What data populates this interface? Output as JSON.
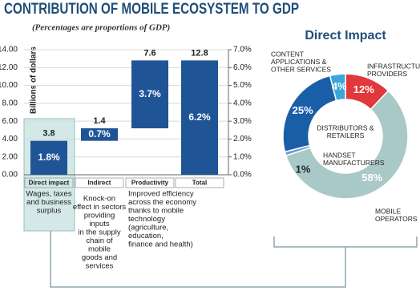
{
  "title": "CONTRIBUTION OF MOBILE ECOSYSTEM TO GDP",
  "subtitle": "(Percentages are proportions of GDP)",
  "chart_data": [
    {
      "type": "waterfall",
      "ylabel": "Billions of dollars",
      "categories": [
        "Direct impact",
        "Indirect",
        "Productivity",
        "Total"
      ],
      "measure": [
        "relative",
        "relative",
        "relative",
        "total"
      ],
      "values": [
        3.8,
        1.4,
        7.6,
        12.8
      ],
      "color": "#1f5596",
      "gdp_share": {
        "values": [
          1.8,
          0.7,
          3.7,
          6.2
        ],
        "value_labels": [
          "1.8%",
          "0.7%",
          "3.7%",
          "6.2%"
        ]
      },
      "descriptions": [
        [
          "Wages, taxes",
          "and business",
          "surplus"
        ],
        [
          "Knock-on",
          "effect in sectors",
          "providing",
          "inputs",
          "in the supply",
          "chain of",
          "mobile",
          "goods and",
          "services"
        ],
        [
          "Improved efficiency",
          "across the economy",
          "thanks to mobile",
          "technology",
          "(agriculture,",
          "education,",
          "finance and health)"
        ],
        []
      ],
      "ylim": [
        0,
        14
      ],
      "yticks": [
        {
          "value": 0,
          "label": "0.00"
        },
        {
          "value": 2,
          "label": "2.00"
        },
        {
          "value": 4,
          "label": "4.00"
        },
        {
          "value": 6,
          "label": "6.00"
        },
        {
          "value": 8,
          "label": "8.00"
        },
        {
          "value": 10,
          "label": "10.00"
        },
        {
          "value": 12,
          "label": "12.00"
        },
        {
          "value": 14,
          "label": "14.00"
        }
      ],
      "y2lim": [
        0,
        7
      ],
      "y2ticks": [
        {
          "value": 0,
          "label": "0.0%"
        },
        {
          "value": 1,
          "label": "1.0%"
        },
        {
          "value": 2,
          "label": "2.0%"
        },
        {
          "value": 3,
          "label": "3.0%"
        },
        {
          "value": 4,
          "label": "4.0%"
        },
        {
          "value": 5,
          "label": "5.0%"
        },
        {
          "value": 6,
          "label": "6.0%"
        },
        {
          "value": 7,
          "label": "7.0%"
        }
      ],
      "grid": true
    },
    {
      "type": "donut",
      "title": "Direct Impact",
      "slices": [
        {
          "name": [
            "INFRASTRUCTURE",
            "PROVIDERS"
          ],
          "value": 12,
          "value_label": "12%",
          "color": "#e0383b"
        },
        {
          "name": [
            "MOBILE",
            "OPERATORS"
          ],
          "value": 58,
          "value_label": "58%",
          "color": "#a9c9c8"
        },
        {
          "name": [
            "HANDSET",
            "MANUFACTURERS"
          ],
          "value": 1,
          "value_label": "1%",
          "color": "#6e9dcf"
        },
        {
          "name": [
            "DISTRIBUTORS &",
            "RETAILERS"
          ],
          "value": 25,
          "value_label": "25%",
          "color": "#1a5ea8"
        },
        {
          "name": [
            "CONTENT",
            "APPLICATIONS &",
            "OTHER SERVICES"
          ],
          "value": 4,
          "value_label": "4%",
          "color": "#3aa6d9"
        }
      ]
    }
  ]
}
